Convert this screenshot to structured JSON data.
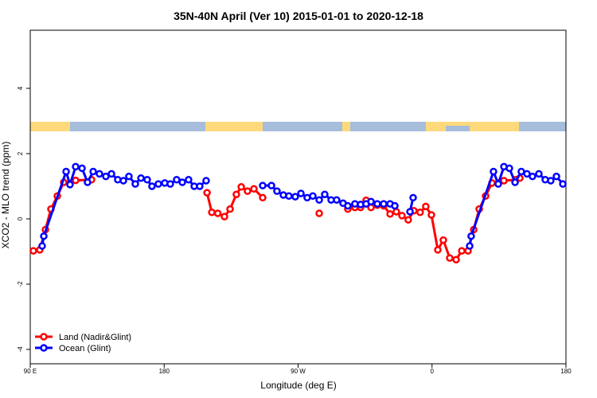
{
  "chart_data": {
    "type": "line",
    "title": "35N-40N April (Ver 10)   2015-01-01 to 2020-12-18",
    "x_label": "Longitude (deg E)",
    "y_label": "XCO2 - MLO trend (ppm)",
    "xlim": [
      90,
      450
    ],
    "ylim": [
      -4.44,
      5.78
    ],
    "xticks": [
      {
        "value": 90,
        "label": "90 E"
      },
      180,
      {
        "value": 270,
        "label": "90 W"
      },
      {
        "value": 360,
        "label": "0"
      },
      {
        "value": 450,
        "label": "180"
      }
    ],
    "yticks": [
      -4,
      -2,
      0,
      2,
      4
    ],
    "legend": "bottomleft",
    "series": [
      {
        "name": "Land (Nadir&Glint)",
        "color": "#ff0000",
        "x": [
          92.1,
          96.4,
          100.2,
          103.9,
          108.2,
          112.5,
          120.5,
          131.2,
          null,
          208.8,
          212,
          216,
          220.5,
          224.3,
          228.5,
          231.8,
          236,
          240.3,
          246.2,
          null,
          284.2,
          null,
          303.4,
          308.2,
          312,
          315.7,
          319,
          323.2,
          327.5,
          331.8,
          336,
          339.8,
          344,
          347.8,
          352,
          355.8,
          359.6,
          363.9,
          367.6,
          371.9,
          376.2,
          380,
          384.2,
          388,
          391.7,
          396,
          400.3,
          404.5,
          408.3,
          416.3,
          419
        ],
        "values": [
          -0.98,
          -0.95,
          -0.33,
          0.3,
          0.7,
          1.12,
          1.18,
          1.2,
          null,
          0.8,
          0.2,
          0.17,
          0.07,
          0.3,
          0.75,
          0.98,
          0.85,
          0.92,
          0.65,
          null,
          0.17,
          null,
          0.3,
          0.35,
          0.35,
          0.57,
          0.35,
          0.42,
          0.4,
          0.15,
          0.22,
          0.1,
          -0.03,
          0.25,
          0.2,
          0.38,
          0.12,
          -0.95,
          -0.65,
          -1.2,
          -1.25,
          -0.98,
          -0.98,
          -0.33,
          0.3,
          0.7,
          1.1,
          1.1,
          1.17,
          1.2,
          1.25
        ]
      },
      {
        "name": "Ocean (Glint)",
        "color": "#0000ff",
        "x": [
          98,
          99.1,
          114.1,
          116.7,
          120.5,
          124.8,
          128.5,
          132.3,
          136.5,
          140.8,
          144.6,
          148.8,
          152.6,
          156.3,
          160.6,
          164.4,
          168.6,
          171.8,
          176.1,
          180.4,
          184.1,
          188.4,
          192.2,
          196.4,
          200.2,
          203.9,
          208.2,
          null,
          246.2,
          252.1,
          255.8,
          260.1,
          263.8,
          268.1,
          271.9,
          276.1,
          279.9,
          284.2,
          287.9,
          292.2,
          295.9,
          300.2,
          303.4,
          308.2,
          312,
          315.7,
          319,
          323.2,
          327.5,
          331.8,
          335,
          null,
          345.2,
          347.3,
          null,
          385.3,
          386.3,
          401.3,
          404.5,
          408.3,
          412,
          415.8,
          420,
          423.8,
          427.5,
          431.8,
          436.1,
          439.8,
          443.6,
          447.9
        ],
        "values": [
          -0.83,
          -0.53,
          1.45,
          1.05,
          1.6,
          1.55,
          1.12,
          1.45,
          1.38,
          1.3,
          1.38,
          1.2,
          1.17,
          1.3,
          1.07,
          1.25,
          1.2,
          1.0,
          1.07,
          1.1,
          1.07,
          1.2,
          1.12,
          1.2,
          1.0,
          1.0,
          1.17,
          null,
          1.02,
          1.02,
          0.85,
          0.73,
          0.7,
          0.68,
          0.78,
          0.65,
          0.7,
          0.58,
          0.75,
          0.58,
          0.58,
          0.48,
          0.4,
          0.46,
          0.44,
          0.46,
          0.53,
          0.46,
          0.46,
          0.46,
          0.4,
          null,
          0.22,
          0.65,
          null,
          -0.83,
          -0.53,
          1.45,
          1.07,
          1.6,
          1.55,
          1.12,
          1.45,
          1.38,
          1.3,
          1.38,
          1.2,
          1.17,
          1.3,
          1.07
        ]
      }
    ]
  }
}
